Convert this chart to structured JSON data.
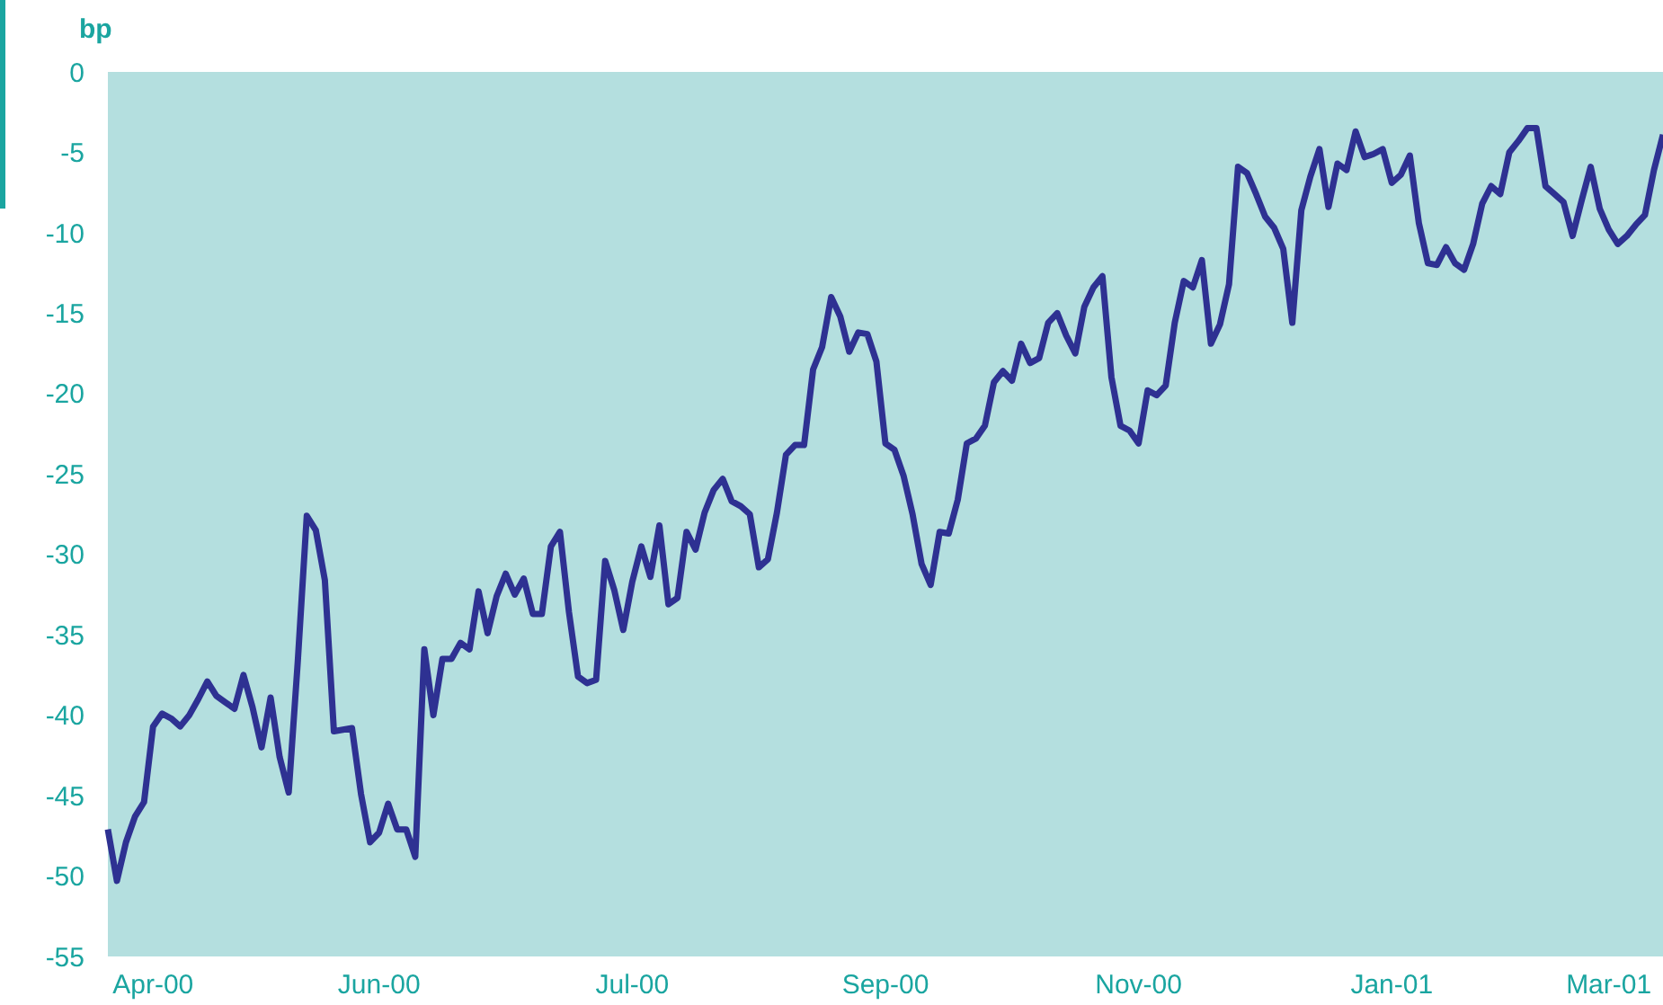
{
  "chart_data": {
    "type": "line",
    "ylabel": "bp",
    "categories": [
      null,
      null,
      null,
      null,
      null,
      "Apr-00",
      null,
      null,
      null,
      null,
      null,
      null,
      null,
      null,
      null,
      null,
      null,
      null,
      null,
      null,
      null,
      null,
      null,
      null,
      null,
      null,
      null,
      null,
      null,
      null,
      "Jun-00",
      null,
      null,
      null,
      null,
      null,
      null,
      null,
      null,
      null,
      null,
      null,
      null,
      null,
      null,
      null,
      null,
      null,
      null,
      null,
      null,
      null,
      null,
      null,
      null,
      null,
      null,
      null,
      "Jul-00",
      null,
      null,
      null,
      null,
      null,
      null,
      null,
      null,
      null,
      null,
      null,
      null,
      null,
      null,
      null,
      null,
      null,
      null,
      null,
      null,
      null,
      null,
      null,
      null,
      null,
      null,
      null,
      "Sep-00",
      null,
      null,
      null,
      null,
      null,
      null,
      null,
      null,
      null,
      null,
      null,
      null,
      null,
      null,
      null,
      null,
      null,
      null,
      null,
      null,
      null,
      null,
      null,
      null,
      null,
      null,
      null,
      "Nov-00",
      null,
      null,
      null,
      null,
      null,
      null,
      null,
      null,
      null,
      null,
      null,
      null,
      null,
      null,
      null,
      null,
      null,
      null,
      null,
      null,
      null,
      null,
      null,
      null,
      null,
      null,
      null,
      "Jan-01",
      null,
      null,
      null,
      null,
      null,
      null,
      null,
      null,
      null,
      null,
      null,
      null,
      null,
      null,
      null,
      null,
      null,
      null,
      null,
      null,
      null,
      null,
      null,
      "Mar-01",
      null,
      null,
      null,
      null,
      null,
      null
    ],
    "series": [
      {
        "color": "#2e3192",
        "values": [
          -47.1,
          -50.3,
          -47.9,
          -46.3,
          -45.4,
          -40.7,
          -39.9,
          -40.2,
          -40.7,
          -40.0,
          -39.0,
          -37.9,
          -38.8,
          -39.2,
          -39.6,
          -37.5,
          -39.5,
          -42.0,
          -38.9,
          -42.6,
          -44.8,
          -36.7,
          -27.6,
          -28.5,
          -31.6,
          -41.0,
          -40.9,
          -40.8,
          -44.9,
          -47.9,
          -47.3,
          -45.5,
          -47.1,
          -47.1,
          -48.8,
          -35.9,
          -40.0,
          -36.5,
          -36.5,
          -35.5,
          -35.9,
          -32.3,
          -34.9,
          -32.6,
          -31.2,
          -32.5,
          -31.5,
          -33.7,
          -33.7,
          -29.5,
          -28.6,
          -33.6,
          -37.6,
          -38.0,
          -37.8,
          -30.4,
          -32.2,
          -34.7,
          -31.7,
          -29.5,
          -31.4,
          -28.2,
          -33.1,
          -32.7,
          -28.6,
          -29.7,
          -27.4,
          -26.0,
          -25.3,
          -26.7,
          -27.0,
          -27.5,
          -30.8,
          -30.3,
          -27.4,
          -23.8,
          -23.2,
          -23.2,
          -18.5,
          -17.1,
          -14.0,
          -15.2,
          -17.4,
          -16.2,
          -16.3,
          -18.0,
          -23.1,
          -23.5,
          -25.1,
          -27.5,
          -30.6,
          -31.9,
          -28.6,
          -28.7,
          -26.6,
          -23.1,
          -22.8,
          -22.0,
          -19.3,
          -18.6,
          -19.2,
          -16.9,
          -18.1,
          -17.8,
          -15.6,
          -15.0,
          -16.4,
          -17.5,
          -14.6,
          -13.4,
          -12.7,
          -19.0,
          -22.0,
          -22.3,
          -23.1,
          -19.8,
          -20.1,
          -19.5,
          -15.6,
          -13.0,
          -13.4,
          -11.7,
          -16.9,
          -15.7,
          -13.2,
          -5.9,
          -6.3,
          -7.6,
          -9.0,
          -9.7,
          -11.0,
          -15.6,
          -8.6,
          -6.5,
          -4.8,
          -8.4,
          -5.7,
          -6.1,
          -3.7,
          -5.3,
          -5.1,
          -4.8,
          -6.9,
          -6.4,
          -5.2,
          -9.4,
          -11.9,
          -12.0,
          -10.9,
          -11.9,
          -12.3,
          -10.7,
          -8.2,
          -7.1,
          -7.6,
          -5.0,
          -4.3,
          -3.5,
          -3.5,
          -7.1,
          -7.6,
          -8.1,
          -10.2,
          -8.0,
          -5.9,
          -8.5,
          -9.8,
          -10.7,
          -10.2,
          -9.5,
          -8.9,
          -6.1,
          -3.9
        ]
      }
    ],
    "ylim": [
      -55,
      0
    ],
    "yticks": [
      -55,
      -50,
      -45,
      -40,
      -35,
      -30,
      -25,
      -20,
      -15,
      -10,
      -5,
      0
    ],
    "grid": false,
    "legend": false,
    "marker": "none",
    "line_style": "solid"
  }
}
